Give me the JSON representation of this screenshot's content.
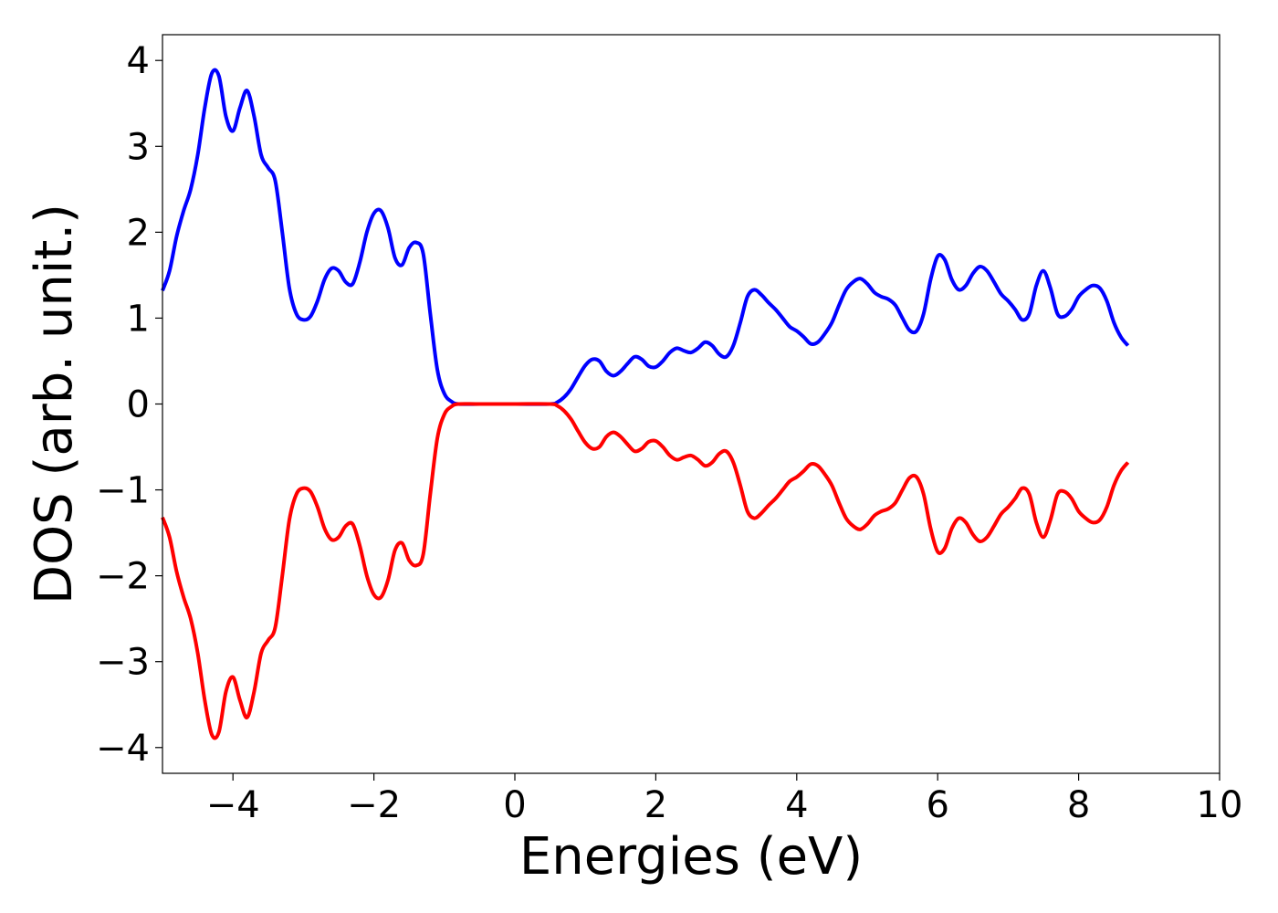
{
  "chart_data": {
    "type": "line",
    "title": "",
    "xlabel": "Energies (eV)",
    "ylabel": "DOS (arb. unit.)",
    "xlim": [
      -5,
      10
    ],
    "ylim": [
      -4.3,
      4.3
    ],
    "x_ticks": [
      -4,
      -2,
      0,
      2,
      4,
      6,
      8,
      10
    ],
    "y_ticks": [
      -4,
      -3,
      -2,
      -1,
      0,
      1,
      2,
      3,
      4
    ],
    "x_tick_labels": [
      "−4",
      "−2",
      "0",
      "2",
      "4",
      "6",
      "8",
      "10"
    ],
    "y_tick_labels": [
      "−4",
      "−3",
      "−2",
      "−1",
      "0",
      "1",
      "2",
      "3",
      "4"
    ],
    "grid": false,
    "legend": "none",
    "series": [
      {
        "color": "#0000ff",
        "points": [
          [
            -5.0,
            1.32
          ],
          [
            -4.9,
            1.55
          ],
          [
            -4.8,
            1.95
          ],
          [
            -4.7,
            2.25
          ],
          [
            -4.6,
            2.5
          ],
          [
            -4.5,
            2.9
          ],
          [
            -4.4,
            3.45
          ],
          [
            -4.3,
            3.85
          ],
          [
            -4.2,
            3.82
          ],
          [
            -4.1,
            3.35
          ],
          [
            -4.0,
            3.18
          ],
          [
            -3.9,
            3.45
          ],
          [
            -3.8,
            3.65
          ],
          [
            -3.7,
            3.35
          ],
          [
            -3.6,
            2.9
          ],
          [
            -3.5,
            2.75
          ],
          [
            -3.4,
            2.6
          ],
          [
            -3.3,
            2.0
          ],
          [
            -3.2,
            1.35
          ],
          [
            -3.1,
            1.05
          ],
          [
            -3.0,
            0.98
          ],
          [
            -2.9,
            1.02
          ],
          [
            -2.8,
            1.2
          ],
          [
            -2.7,
            1.45
          ],
          [
            -2.6,
            1.58
          ],
          [
            -2.5,
            1.55
          ],
          [
            -2.4,
            1.42
          ],
          [
            -2.3,
            1.4
          ],
          [
            -2.2,
            1.65
          ],
          [
            -2.1,
            2.0
          ],
          [
            -2.0,
            2.22
          ],
          [
            -1.9,
            2.25
          ],
          [
            -1.8,
            2.05
          ],
          [
            -1.7,
            1.7
          ],
          [
            -1.6,
            1.62
          ],
          [
            -1.5,
            1.82
          ],
          [
            -1.4,
            1.88
          ],
          [
            -1.3,
            1.75
          ],
          [
            -1.2,
            1.05
          ],
          [
            -1.1,
            0.4
          ],
          [
            -1.0,
            0.12
          ],
          [
            -0.9,
            0.03
          ],
          [
            -0.8,
            0.0
          ],
          [
            -0.5,
            0.0
          ],
          [
            0.0,
            0.0
          ],
          [
            0.5,
            0.0
          ],
          [
            0.6,
            0.02
          ],
          [
            0.7,
            0.08
          ],
          [
            0.8,
            0.18
          ],
          [
            0.9,
            0.32
          ],
          [
            1.0,
            0.45
          ],
          [
            1.1,
            0.52
          ],
          [
            1.2,
            0.5
          ],
          [
            1.3,
            0.38
          ],
          [
            1.4,
            0.33
          ],
          [
            1.5,
            0.38
          ],
          [
            1.6,
            0.47
          ],
          [
            1.7,
            0.55
          ],
          [
            1.8,
            0.52
          ],
          [
            1.9,
            0.44
          ],
          [
            2.0,
            0.43
          ],
          [
            2.1,
            0.5
          ],
          [
            2.2,
            0.6
          ],
          [
            2.3,
            0.65
          ],
          [
            2.4,
            0.62
          ],
          [
            2.5,
            0.6
          ],
          [
            2.6,
            0.65
          ],
          [
            2.7,
            0.72
          ],
          [
            2.8,
            0.68
          ],
          [
            2.9,
            0.58
          ],
          [
            3.0,
            0.55
          ],
          [
            3.1,
            0.68
          ],
          [
            3.2,
            0.95
          ],
          [
            3.3,
            1.25
          ],
          [
            3.4,
            1.33
          ],
          [
            3.5,
            1.27
          ],
          [
            3.6,
            1.18
          ],
          [
            3.7,
            1.1
          ],
          [
            3.8,
            1.0
          ],
          [
            3.9,
            0.9
          ],
          [
            4.0,
            0.85
          ],
          [
            4.1,
            0.78
          ],
          [
            4.2,
            0.7
          ],
          [
            4.3,
            0.72
          ],
          [
            4.4,
            0.82
          ],
          [
            4.5,
            0.95
          ],
          [
            4.6,
            1.15
          ],
          [
            4.7,
            1.33
          ],
          [
            4.8,
            1.42
          ],
          [
            4.9,
            1.46
          ],
          [
            5.0,
            1.4
          ],
          [
            5.1,
            1.3
          ],
          [
            5.2,
            1.25
          ],
          [
            5.3,
            1.22
          ],
          [
            5.4,
            1.15
          ],
          [
            5.5,
            1.0
          ],
          [
            5.6,
            0.86
          ],
          [
            5.7,
            0.85
          ],
          [
            5.8,
            1.05
          ],
          [
            5.9,
            1.45
          ],
          [
            6.0,
            1.72
          ],
          [
            6.1,
            1.68
          ],
          [
            6.2,
            1.45
          ],
          [
            6.3,
            1.33
          ],
          [
            6.4,
            1.38
          ],
          [
            6.5,
            1.52
          ],
          [
            6.6,
            1.6
          ],
          [
            6.7,
            1.55
          ],
          [
            6.8,
            1.42
          ],
          [
            6.9,
            1.28
          ],
          [
            7.0,
            1.2
          ],
          [
            7.1,
            1.1
          ],
          [
            7.2,
            0.98
          ],
          [
            7.3,
            1.05
          ],
          [
            7.4,
            1.38
          ],
          [
            7.5,
            1.55
          ],
          [
            7.6,
            1.35
          ],
          [
            7.7,
            1.05
          ],
          [
            7.8,
            1.02
          ],
          [
            7.9,
            1.1
          ],
          [
            8.0,
            1.25
          ],
          [
            8.1,
            1.33
          ],
          [
            8.2,
            1.38
          ],
          [
            8.3,
            1.35
          ],
          [
            8.4,
            1.2
          ],
          [
            8.5,
            0.95
          ],
          [
            8.6,
            0.78
          ],
          [
            8.7,
            0.68
          ]
        ]
      },
      {
        "color": "#ff0000",
        "points": [
          [
            -5.0,
            -1.32
          ],
          [
            -4.9,
            -1.55
          ],
          [
            -4.8,
            -1.95
          ],
          [
            -4.7,
            -2.25
          ],
          [
            -4.6,
            -2.5
          ],
          [
            -4.5,
            -2.9
          ],
          [
            -4.4,
            -3.45
          ],
          [
            -4.3,
            -3.85
          ],
          [
            -4.2,
            -3.82
          ],
          [
            -4.1,
            -3.35
          ],
          [
            -4.0,
            -3.18
          ],
          [
            -3.9,
            -3.45
          ],
          [
            -3.8,
            -3.65
          ],
          [
            -3.7,
            -3.35
          ],
          [
            -3.6,
            -2.9
          ],
          [
            -3.5,
            -2.75
          ],
          [
            -3.4,
            -2.6
          ],
          [
            -3.3,
            -2.0
          ],
          [
            -3.2,
            -1.35
          ],
          [
            -3.1,
            -1.05
          ],
          [
            -3.0,
            -0.98
          ],
          [
            -2.9,
            -1.02
          ],
          [
            -2.8,
            -1.2
          ],
          [
            -2.7,
            -1.45
          ],
          [
            -2.6,
            -1.58
          ],
          [
            -2.5,
            -1.55
          ],
          [
            -2.4,
            -1.42
          ],
          [
            -2.3,
            -1.4
          ],
          [
            -2.2,
            -1.65
          ],
          [
            -2.1,
            -2.0
          ],
          [
            -2.0,
            -2.22
          ],
          [
            -1.9,
            -2.25
          ],
          [
            -1.8,
            -2.05
          ],
          [
            -1.7,
            -1.7
          ],
          [
            -1.6,
            -1.62
          ],
          [
            -1.5,
            -1.82
          ],
          [
            -1.4,
            -1.88
          ],
          [
            -1.3,
            -1.75
          ],
          [
            -1.2,
            -1.05
          ],
          [
            -1.1,
            -0.4
          ],
          [
            -1.0,
            -0.12
          ],
          [
            -0.9,
            -0.03
          ],
          [
            -0.8,
            0.0
          ],
          [
            -0.5,
            0.0
          ],
          [
            0.0,
            0.0
          ],
          [
            0.5,
            0.0
          ],
          [
            0.6,
            -0.02
          ],
          [
            0.7,
            -0.08
          ],
          [
            0.8,
            -0.18
          ],
          [
            0.9,
            -0.32
          ],
          [
            1.0,
            -0.45
          ],
          [
            1.1,
            -0.52
          ],
          [
            1.2,
            -0.5
          ],
          [
            1.3,
            -0.38
          ],
          [
            1.4,
            -0.33
          ],
          [
            1.5,
            -0.38
          ],
          [
            1.6,
            -0.47
          ],
          [
            1.7,
            -0.55
          ],
          [
            1.8,
            -0.52
          ],
          [
            1.9,
            -0.44
          ],
          [
            2.0,
            -0.43
          ],
          [
            2.1,
            -0.5
          ],
          [
            2.2,
            -0.6
          ],
          [
            2.3,
            -0.65
          ],
          [
            2.4,
            -0.62
          ],
          [
            2.5,
            -0.6
          ],
          [
            2.6,
            -0.65
          ],
          [
            2.7,
            -0.72
          ],
          [
            2.8,
            -0.68
          ],
          [
            2.9,
            -0.58
          ],
          [
            3.0,
            -0.55
          ],
          [
            3.1,
            -0.68
          ],
          [
            3.2,
            -0.95
          ],
          [
            3.3,
            -1.25
          ],
          [
            3.4,
            -1.33
          ],
          [
            3.5,
            -1.27
          ],
          [
            3.6,
            -1.18
          ],
          [
            3.7,
            -1.1
          ],
          [
            3.8,
            -1.0
          ],
          [
            3.9,
            -0.9
          ],
          [
            4.0,
            -0.85
          ],
          [
            4.1,
            -0.78
          ],
          [
            4.2,
            -0.7
          ],
          [
            4.3,
            -0.72
          ],
          [
            4.4,
            -0.82
          ],
          [
            4.5,
            -0.95
          ],
          [
            4.6,
            -1.15
          ],
          [
            4.7,
            -1.33
          ],
          [
            4.8,
            -1.42
          ],
          [
            4.9,
            -1.46
          ],
          [
            5.0,
            -1.4
          ],
          [
            5.1,
            -1.3
          ],
          [
            5.2,
            -1.25
          ],
          [
            5.3,
            -1.22
          ],
          [
            5.4,
            -1.15
          ],
          [
            5.5,
            -1.0
          ],
          [
            5.6,
            -0.86
          ],
          [
            5.7,
            -0.85
          ],
          [
            5.8,
            -1.05
          ],
          [
            5.9,
            -1.45
          ],
          [
            6.0,
            -1.72
          ],
          [
            6.1,
            -1.68
          ],
          [
            6.2,
            -1.45
          ],
          [
            6.3,
            -1.33
          ],
          [
            6.4,
            -1.38
          ],
          [
            6.5,
            -1.52
          ],
          [
            6.6,
            -1.6
          ],
          [
            6.7,
            -1.55
          ],
          [
            6.8,
            -1.42
          ],
          [
            6.9,
            -1.28
          ],
          [
            7.0,
            -1.2
          ],
          [
            7.1,
            -1.1
          ],
          [
            7.2,
            -0.98
          ],
          [
            7.3,
            -1.05
          ],
          [
            7.4,
            -1.38
          ],
          [
            7.5,
            -1.55
          ],
          [
            7.6,
            -1.35
          ],
          [
            7.7,
            -1.05
          ],
          [
            7.8,
            -1.02
          ],
          [
            7.9,
            -1.1
          ],
          [
            8.0,
            -1.25
          ],
          [
            8.1,
            -1.33
          ],
          [
            8.2,
            -1.38
          ],
          [
            8.3,
            -1.35
          ],
          [
            8.4,
            -1.2
          ],
          [
            8.5,
            -0.95
          ],
          [
            8.6,
            -0.78
          ],
          [
            8.7,
            -0.68
          ]
        ]
      }
    ]
  }
}
